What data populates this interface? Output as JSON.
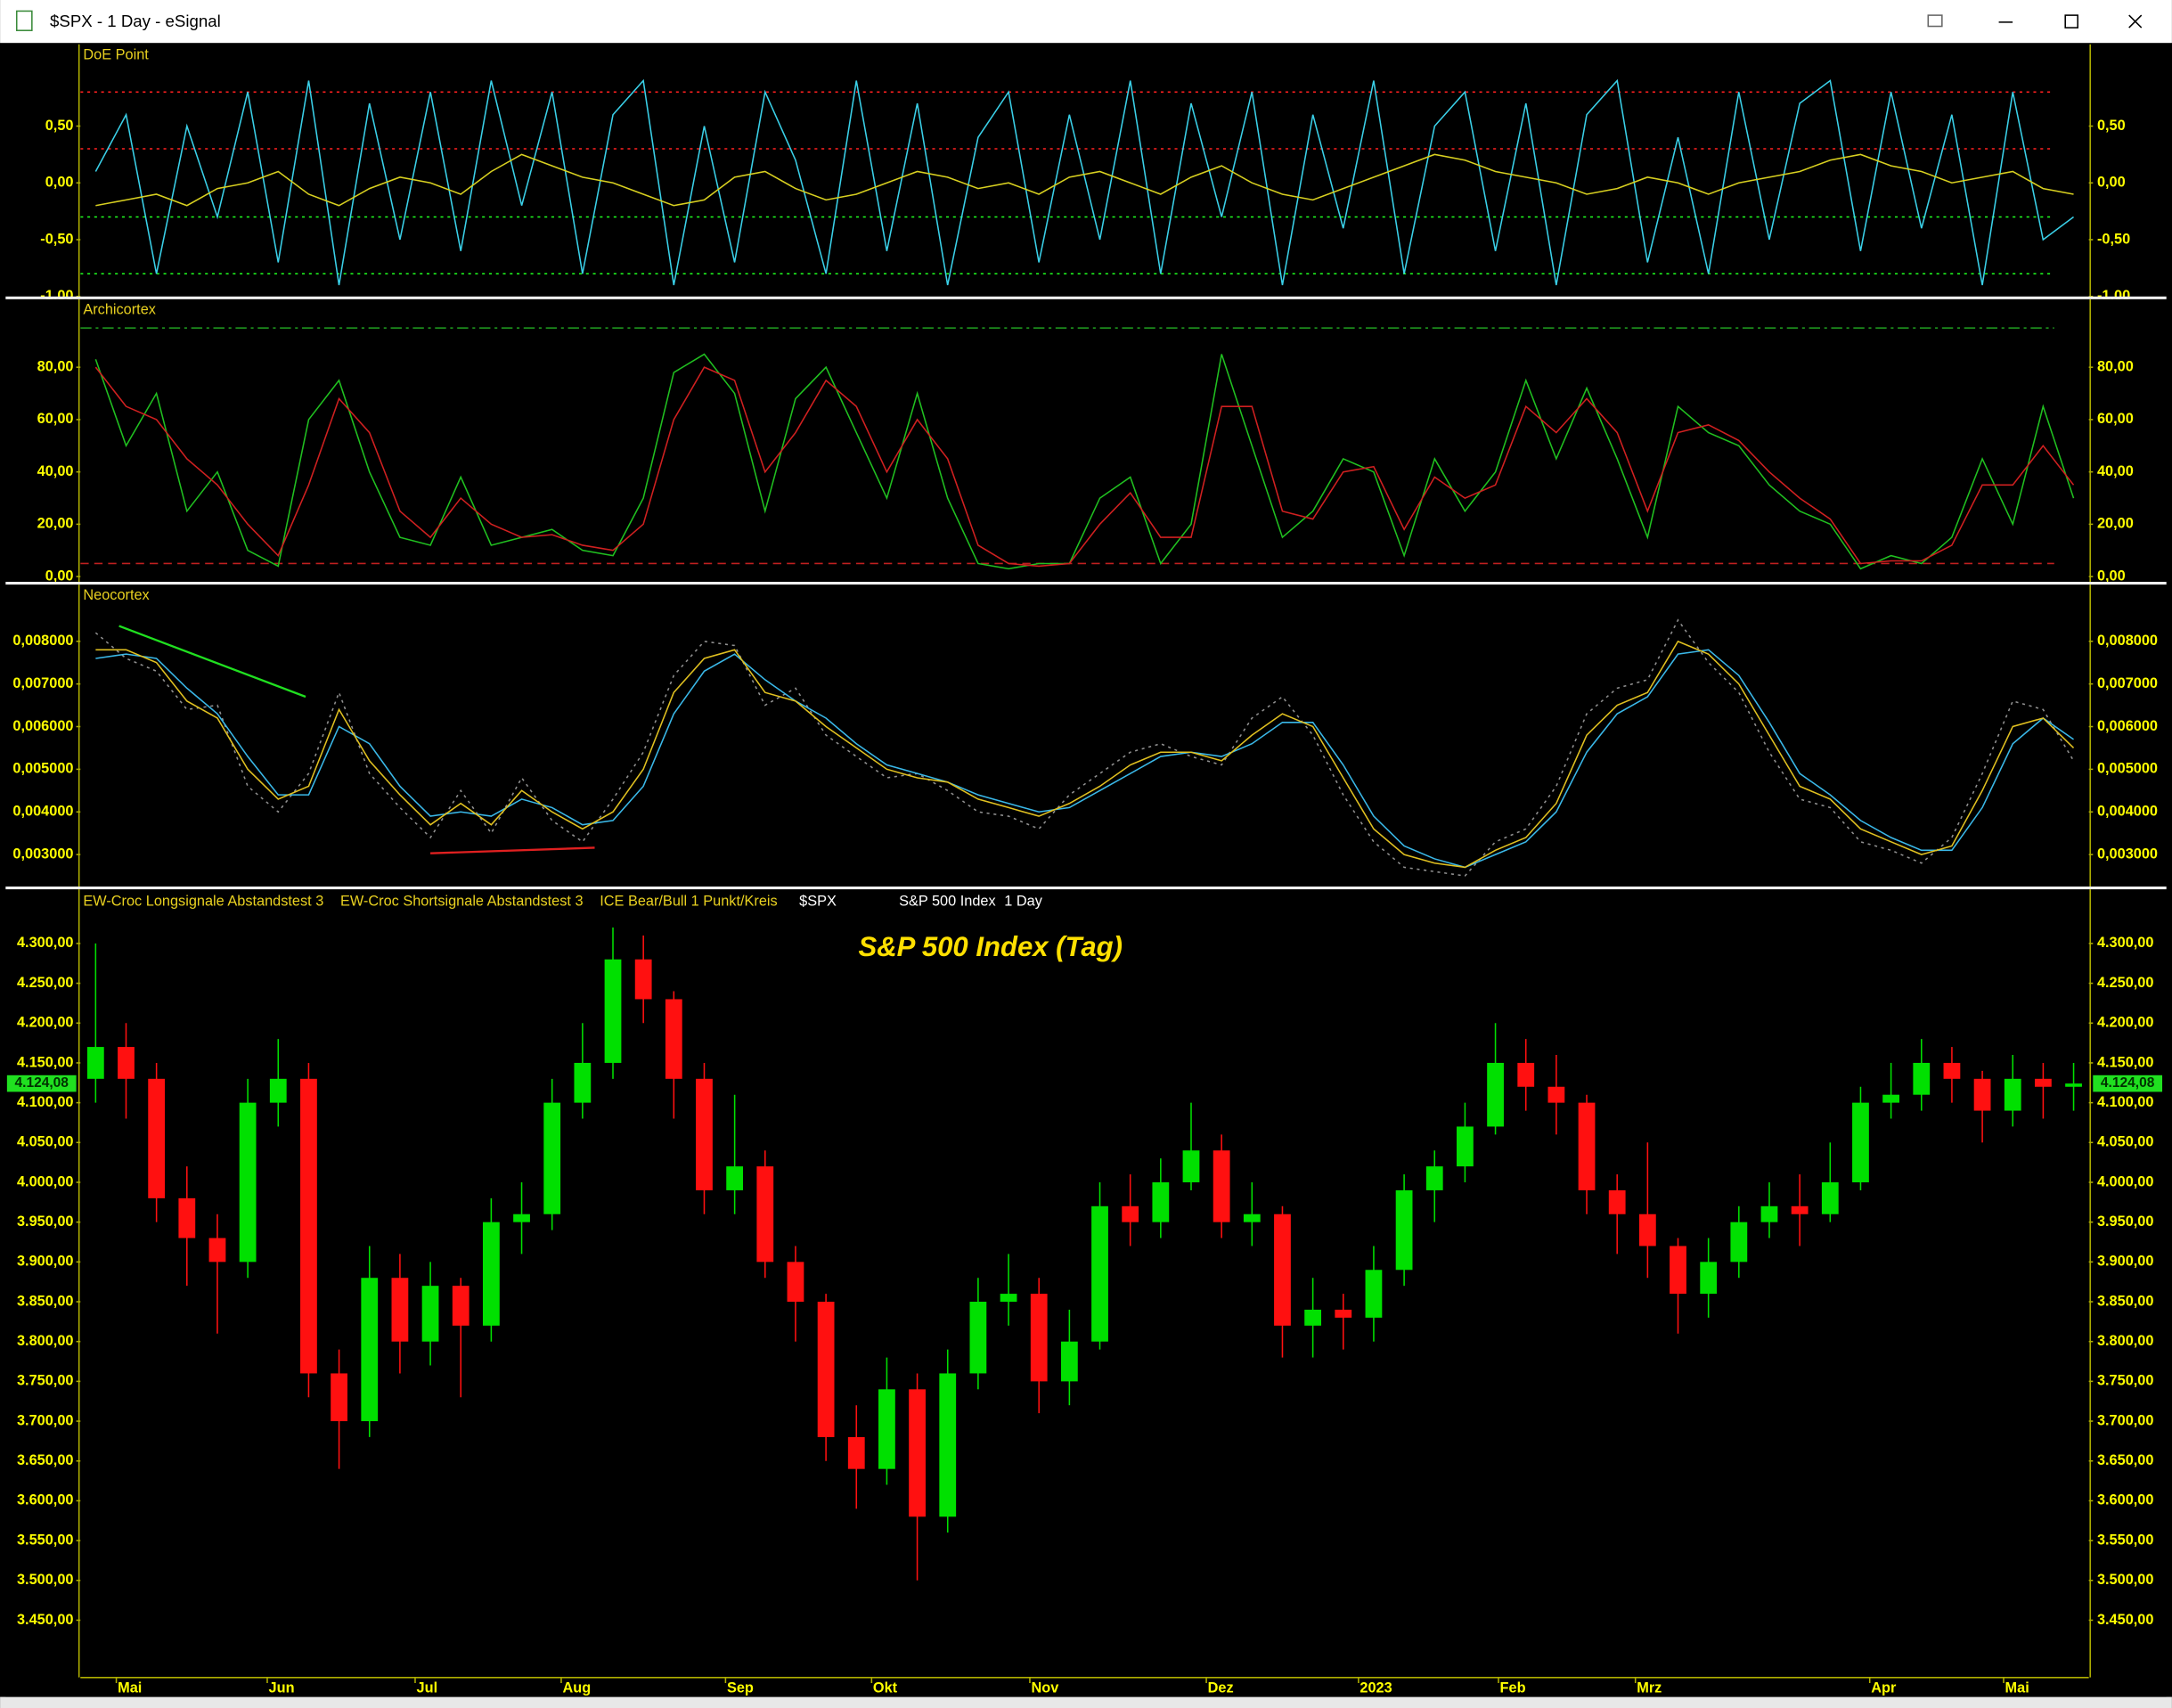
{
  "window": {
    "title": "$SPX - 1 Day - eSignal"
  },
  "chart_data": [
    {
      "type": "line",
      "title": "DoE Point",
      "xlim": [
        -0.5,
        65.5
      ],
      "ylim": [
        -1,
        1.22
      ],
      "yticks": [
        {
          "value": -1,
          "label": "-1,00"
        },
        {
          "value": -0.5,
          "label": "-0,50"
        },
        {
          "value": 0,
          "label": "0,00"
        },
        {
          "value": 0.5,
          "label": "0,50"
        }
      ],
      "levels": [
        {
          "value": 0.8,
          "color": "#ff2020",
          "style": "dotted"
        },
        {
          "value": 0.3,
          "color": "#ff2020",
          "style": "dotted"
        },
        {
          "value": -0.3,
          "color": "#20ff20",
          "style": "dotted"
        },
        {
          "value": -0.8,
          "color": "#20ff20",
          "style": "dotted"
        }
      ],
      "series": [
        {
          "color": "#3ad0e8",
          "values": [
            0.1,
            0.6,
            -0.8,
            0.5,
            -0.3,
            0.8,
            -0.7,
            0.9,
            -0.9,
            0.7,
            -0.5,
            0.8,
            -0.6,
            0.9,
            -0.2,
            0.8,
            -0.8,
            0.6,
            0.9,
            -0.9,
            0.5,
            -0.7,
            0.8,
            0.2,
            -0.8,
            0.9,
            -0.6,
            0.7,
            -0.9,
            0.4,
            0.8,
            -0.7,
            0.6,
            -0.5,
            0.9,
            -0.8,
            0.7,
            -0.3,
            0.8,
            -0.9,
            0.6,
            -0.4,
            0.9,
            -0.8,
            0.5,
            0.8,
            -0.6,
            0.7,
            -0.9,
            0.6,
            0.9,
            -0.7,
            0.4,
            -0.8,
            0.8,
            -0.5,
            0.7,
            0.9,
            -0.6,
            0.8,
            -0.4,
            0.6,
            -0.9,
            0.8,
            -0.5,
            -0.3
          ]
        },
        {
          "color": "#d8d020",
          "values": [
            -0.2,
            -0.15,
            -0.1,
            -0.2,
            -0.05,
            0.0,
            0.1,
            -0.1,
            -0.2,
            -0.05,
            0.05,
            0.0,
            -0.1,
            0.1,
            0.25,
            0.15,
            0.05,
            0.0,
            -0.1,
            -0.2,
            -0.15,
            0.05,
            0.1,
            -0.05,
            -0.15,
            -0.1,
            0.0,
            0.1,
            0.05,
            -0.05,
            0.0,
            -0.1,
            0.05,
            0.1,
            0.0,
            -0.1,
            0.05,
            0.15,
            0.0,
            -0.1,
            -0.15,
            -0.05,
            0.05,
            0.15,
            0.25,
            0.2,
            0.1,
            0.05,
            0.0,
            -0.1,
            -0.05,
            0.05,
            0.0,
            -0.1,
            0.0,
            0.05,
            0.1,
            0.2,
            0.25,
            0.15,
            0.1,
            0.0,
            0.05,
            0.1,
            -0.05,
            -0.1
          ]
        }
      ]
    },
    {
      "type": "line",
      "title": "Archicortex",
      "xlim": [
        -0.5,
        65.5
      ],
      "ylim": [
        -2,
        106
      ],
      "yticks": [
        {
          "value": 0,
          "label": "0,00"
        },
        {
          "value": 20,
          "label": "20,00"
        },
        {
          "value": 40,
          "label": "40,00"
        },
        {
          "value": 60,
          "label": "60,00"
        },
        {
          "value": 80,
          "label": "80,00"
        }
      ],
      "levels": [
        {
          "value": 95,
          "color": "#20a020",
          "style": "dashdot"
        },
        {
          "value": 5,
          "color": "#c02020",
          "style": "dashed"
        }
      ],
      "series": [
        {
          "color": "#20c020",
          "values": [
            83,
            50,
            70,
            25,
            40,
            10,
            4,
            60,
            75,
            40,
            15,
            12,
            38,
            12,
            15,
            18,
            10,
            8,
            30,
            78,
            85,
            70,
            25,
            68,
            80,
            55,
            30,
            70,
            30,
            5,
            3,
            5,
            5,
            30,
            38,
            5,
            20,
            85,
            50,
            15,
            25,
            45,
            40,
            8,
            45,
            25,
            40,
            75,
            45,
            72,
            45,
            15,
            65,
            55,
            50,
            35,
            25,
            20,
            3,
            8,
            5,
            15,
            45,
            20,
            65,
            30
          ]
        },
        {
          "color": "#d02020",
          "values": [
            80,
            65,
            60,
            45,
            35,
            20,
            8,
            35,
            68,
            55,
            25,
            15,
            30,
            20,
            15,
            16,
            12,
            10,
            20,
            60,
            80,
            75,
            40,
            55,
            75,
            65,
            40,
            60,
            45,
            12,
            5,
            4,
            5,
            20,
            32,
            15,
            15,
            65,
            65,
            25,
            22,
            40,
            42,
            18,
            38,
            30,
            35,
            65,
            55,
            68,
            55,
            25,
            55,
            58,
            52,
            40,
            30,
            22,
            5,
            6,
            6,
            12,
            35,
            35,
            50,
            35
          ]
        }
      ]
    },
    {
      "type": "line",
      "title": "Neocortex",
      "xlim": [
        -0.5,
        65.5
      ],
      "ylim": [
        0.00225,
        0.00933
      ],
      "yticks": [
        {
          "value": 0.003,
          "label": "0,003000"
        },
        {
          "value": 0.004,
          "label": "0,004000"
        },
        {
          "value": 0.005,
          "label": "0,005000"
        },
        {
          "value": 0.006,
          "label": "0,006000"
        },
        {
          "value": 0.007,
          "label": "0,007000"
        },
        {
          "value": 0.008,
          "label": "0,008000"
        }
      ],
      "series": [
        {
          "color": "#909090",
          "style": "dotted",
          "values": [
            0.0082,
            0.0076,
            0.0073,
            0.0064,
            0.0065,
            0.0046,
            0.004,
            0.0049,
            0.0068,
            0.0049,
            0.0041,
            0.0034,
            0.0045,
            0.0035,
            0.0048,
            0.0038,
            0.0033,
            0.0043,
            0.0054,
            0.0072,
            0.008,
            0.0079,
            0.0065,
            0.0069,
            0.0058,
            0.0053,
            0.0048,
            0.0049,
            0.0045,
            0.004,
            0.0039,
            0.0036,
            0.0044,
            0.0049,
            0.0054,
            0.0056,
            0.0053,
            0.0051,
            0.0062,
            0.0067,
            0.0058,
            0.0044,
            0.0033,
            0.0027,
            0.0026,
            0.0025,
            0.0033,
            0.0036,
            0.0046,
            0.0063,
            0.0069,
            0.0071,
            0.0085,
            0.0075,
            0.0068,
            0.0054,
            0.0043,
            0.0041,
            0.0033,
            0.0031,
            0.0028,
            0.0034,
            0.0049,
            0.0066,
            0.0064,
            0.0052
          ]
        },
        {
          "color": "#3ab8e8",
          "values": [
            0.0076,
            0.0077,
            0.0076,
            0.0069,
            0.0063,
            0.0053,
            0.0044,
            0.0044,
            0.006,
            0.0056,
            0.0046,
            0.0039,
            0.004,
            0.0039,
            0.0043,
            0.0041,
            0.0037,
            0.0038,
            0.0046,
            0.0063,
            0.0073,
            0.0077,
            0.0071,
            0.0066,
            0.0062,
            0.0056,
            0.0051,
            0.0049,
            0.0047,
            0.0044,
            0.0042,
            0.004,
            0.0041,
            0.0045,
            0.0049,
            0.0053,
            0.0054,
            0.0053,
            0.0056,
            0.0061,
            0.0061,
            0.0051,
            0.0039,
            0.0032,
            0.0029,
            0.0027,
            0.003,
            0.0033,
            0.004,
            0.0054,
            0.0063,
            0.0067,
            0.0077,
            0.0078,
            0.0072,
            0.0061,
            0.0049,
            0.0044,
            0.0038,
            0.0034,
            0.0031,
            0.0031,
            0.0041,
            0.0056,
            0.0062,
            0.0057
          ]
        },
        {
          "color": "#e0c020",
          "values": [
            0.0078,
            0.0078,
            0.0075,
            0.0066,
            0.0062,
            0.005,
            0.0043,
            0.0046,
            0.0064,
            0.0052,
            0.0044,
            0.0037,
            0.0042,
            0.0037,
            0.0045,
            0.004,
            0.0036,
            0.004,
            0.005,
            0.0068,
            0.0076,
            0.0078,
            0.0068,
            0.0066,
            0.006,
            0.0055,
            0.005,
            0.0048,
            0.0047,
            0.0043,
            0.0041,
            0.0039,
            0.0042,
            0.0046,
            0.0051,
            0.0054,
            0.0054,
            0.0052,
            0.0058,
            0.0063,
            0.006,
            0.0048,
            0.0036,
            0.003,
            0.0028,
            0.0027,
            0.0031,
            0.0034,
            0.0042,
            0.0058,
            0.0065,
            0.0068,
            0.008,
            0.0077,
            0.007,
            0.0058,
            0.0046,
            0.0043,
            0.0036,
            0.0033,
            0.003,
            0.0032,
            0.0045,
            0.006,
            0.0062,
            0.0055
          ]
        }
      ],
      "trendlines": [
        {
          "color": "#20e020",
          "x": [
            0.77,
            6.9
          ],
          "y": [
            0.00836,
            0.0067
          ]
        },
        {
          "color": "#e02020",
          "x": [
            11.0,
            16.4
          ],
          "y": [
            0.00303,
            0.00316
          ]
        }
      ]
    },
    {
      "type": "candlestick",
      "title": "S&P 500 Index (Tag)",
      "indicators": [
        "EW-Croc Longsignale Abstandstest 3",
        "EW-Croc Shortsignale Abstandstest 3",
        "ICE Bear/Bull 1 Punkt/Kreis"
      ],
      "toolbar": [
        "$SPX",
        "S&P 500 Index",
        "1 Day"
      ],
      "xlim": [
        -0.5,
        65.5
      ],
      "ylim": [
        3378,
        4368
      ],
      "xticks": [
        {
          "value": 0.68,
          "label": "Mai"
        },
        {
          "value": 5.64,
          "label": "Jun"
        },
        {
          "value": 10.5,
          "label": "Jul"
        },
        {
          "value": 15.3,
          "label": "Aug"
        },
        {
          "value": 20.7,
          "label": "Sep"
        },
        {
          "value": 25.5,
          "label": "Okt"
        },
        {
          "value": 30.7,
          "label": "Nov"
        },
        {
          "value": 36.5,
          "label": "Dez"
        },
        {
          "value": 41.5,
          "label": "2023"
        },
        {
          "value": 46.1,
          "label": "Feb"
        },
        {
          "value": 50.6,
          "label": "Mrz"
        },
        {
          "value": 58.3,
          "label": "Apr"
        },
        {
          "value": 62.7,
          "label": "Mai"
        }
      ],
      "yticks": [
        {
          "value": 3450,
          "label": "3.450,00"
        },
        {
          "value": 3500,
          "label": "3.500,00"
        },
        {
          "value": 3550,
          "label": "3.550,00"
        },
        {
          "value": 3600,
          "label": "3.600,00"
        },
        {
          "value": 3650,
          "label": "3.650,00"
        },
        {
          "value": 3700,
          "label": "3.700,00"
        },
        {
          "value": 3750,
          "label": "3.750,00"
        },
        {
          "value": 3800,
          "label": "3.800,00"
        },
        {
          "value": 3850,
          "label": "3.850,00"
        },
        {
          "value": 3900,
          "label": "3.900,00"
        },
        {
          "value": 3950,
          "label": "3.950,00"
        },
        {
          "value": 4000,
          "label": "4.000,00"
        },
        {
          "value": 4050,
          "label": "4.050,00"
        },
        {
          "value": 4100,
          "label": "4.100,00"
        },
        {
          "value": 4150,
          "label": "4.150,00"
        },
        {
          "value": 4200,
          "label": "4.200,00"
        },
        {
          "value": 4250,
          "label": "4.250,00"
        },
        {
          "value": 4300,
          "label": "4.300,00"
        }
      ],
      "up_color": "#00e000",
      "down_color": "#ff1010",
      "open": [
        4130,
        4170,
        4130,
        3980,
        3930,
        3900,
        4100,
        4130,
        3760,
        3700,
        3880,
        3800,
        3870,
        3820,
        3950,
        3960,
        4100,
        4150,
        4280,
        4230,
        4130,
        3990,
        4020,
        3900,
        3850,
        3680,
        3640,
        3740,
        3580,
        3760,
        3850,
        3860,
        3750,
        3800,
        3970,
        3950,
        4000,
        4040,
        3950,
        3960,
        3820,
        3840,
        3830,
        3890,
        3990,
        4020,
        4070,
        4150,
        4120,
        4100,
        3990,
        3960,
        3920,
        3860,
        3900,
        3950,
        3970,
        3960,
        4000,
        4100,
        4110,
        4150,
        4130,
        4090,
        4130,
        4120
      ],
      "high": [
        4300,
        4200,
        4150,
        4020,
        3960,
        4130,
        4180,
        4150,
        3790,
        3920,
        3910,
        3900,
        3880,
        3980,
        4000,
        4130,
        4200,
        4320,
        4310,
        4240,
        4150,
        4110,
        4040,
        3920,
        3860,
        3720,
        3780,
        3760,
        3790,
        3880,
        3910,
        3880,
        3840,
        4000,
        4010,
        4030,
        4100,
        4060,
        4000,
        3970,
        3880,
        3860,
        3920,
        4010,
        4040,
        4100,
        4200,
        4180,
        4160,
        4110,
        4010,
        4050,
        3930,
        3930,
        3970,
        4000,
        4010,
        4050,
        4120,
        4150,
        4180,
        4170,
        4140,
        4160,
        4150,
        4150
      ],
      "low": [
        4100,
        4080,
        3950,
        3870,
        3810,
        3880,
        4070,
        3730,
        3640,
        3680,
        3760,
        3770,
        3730,
        3800,
        3910,
        3940,
        4080,
        4130,
        4200,
        4080,
        3960,
        3960,
        3880,
        3800,
        3650,
        3590,
        3620,
        3500,
        3560,
        3740,
        3820,
        3710,
        3720,
        3790,
        3920,
        3930,
        3990,
        3930,
        3920,
        3780,
        3780,
        3790,
        3800,
        3870,
        3950,
        4000,
        4060,
        4090,
        4060,
        3960,
        3910,
        3880,
        3810,
        3830,
        3880,
        3930,
        3920,
        3950,
        3990,
        4080,
        4090,
        4100,
        4050,
        4070,
        4080,
        4090
      ],
      "close": [
        4170,
        4130,
        3980,
        3930,
        3900,
        4100,
        4130,
        3760,
        3700,
        3880,
        3800,
        3870,
        3820,
        3950,
        3960,
        4100,
        4150,
        4280,
        4230,
        4130,
        3990,
        4020,
        3900,
        3850,
        3680,
        3640,
        3740,
        3580,
        3760,
        3850,
        3860,
        3750,
        3800,
        3970,
        3950,
        4000,
        4040,
        3950,
        3960,
        3820,
        3840,
        3830,
        3890,
        3990,
        4020,
        4070,
        4150,
        4120,
        4100,
        3990,
        3960,
        3920,
        3860,
        3900,
        3950,
        3970,
        3960,
        4000,
        4100,
        4110,
        4150,
        4130,
        4090,
        4130,
        4120,
        4124.08
      ],
      "last_price": {
        "value": 4124.08,
        "label": "4.124,08"
      }
    }
  ]
}
